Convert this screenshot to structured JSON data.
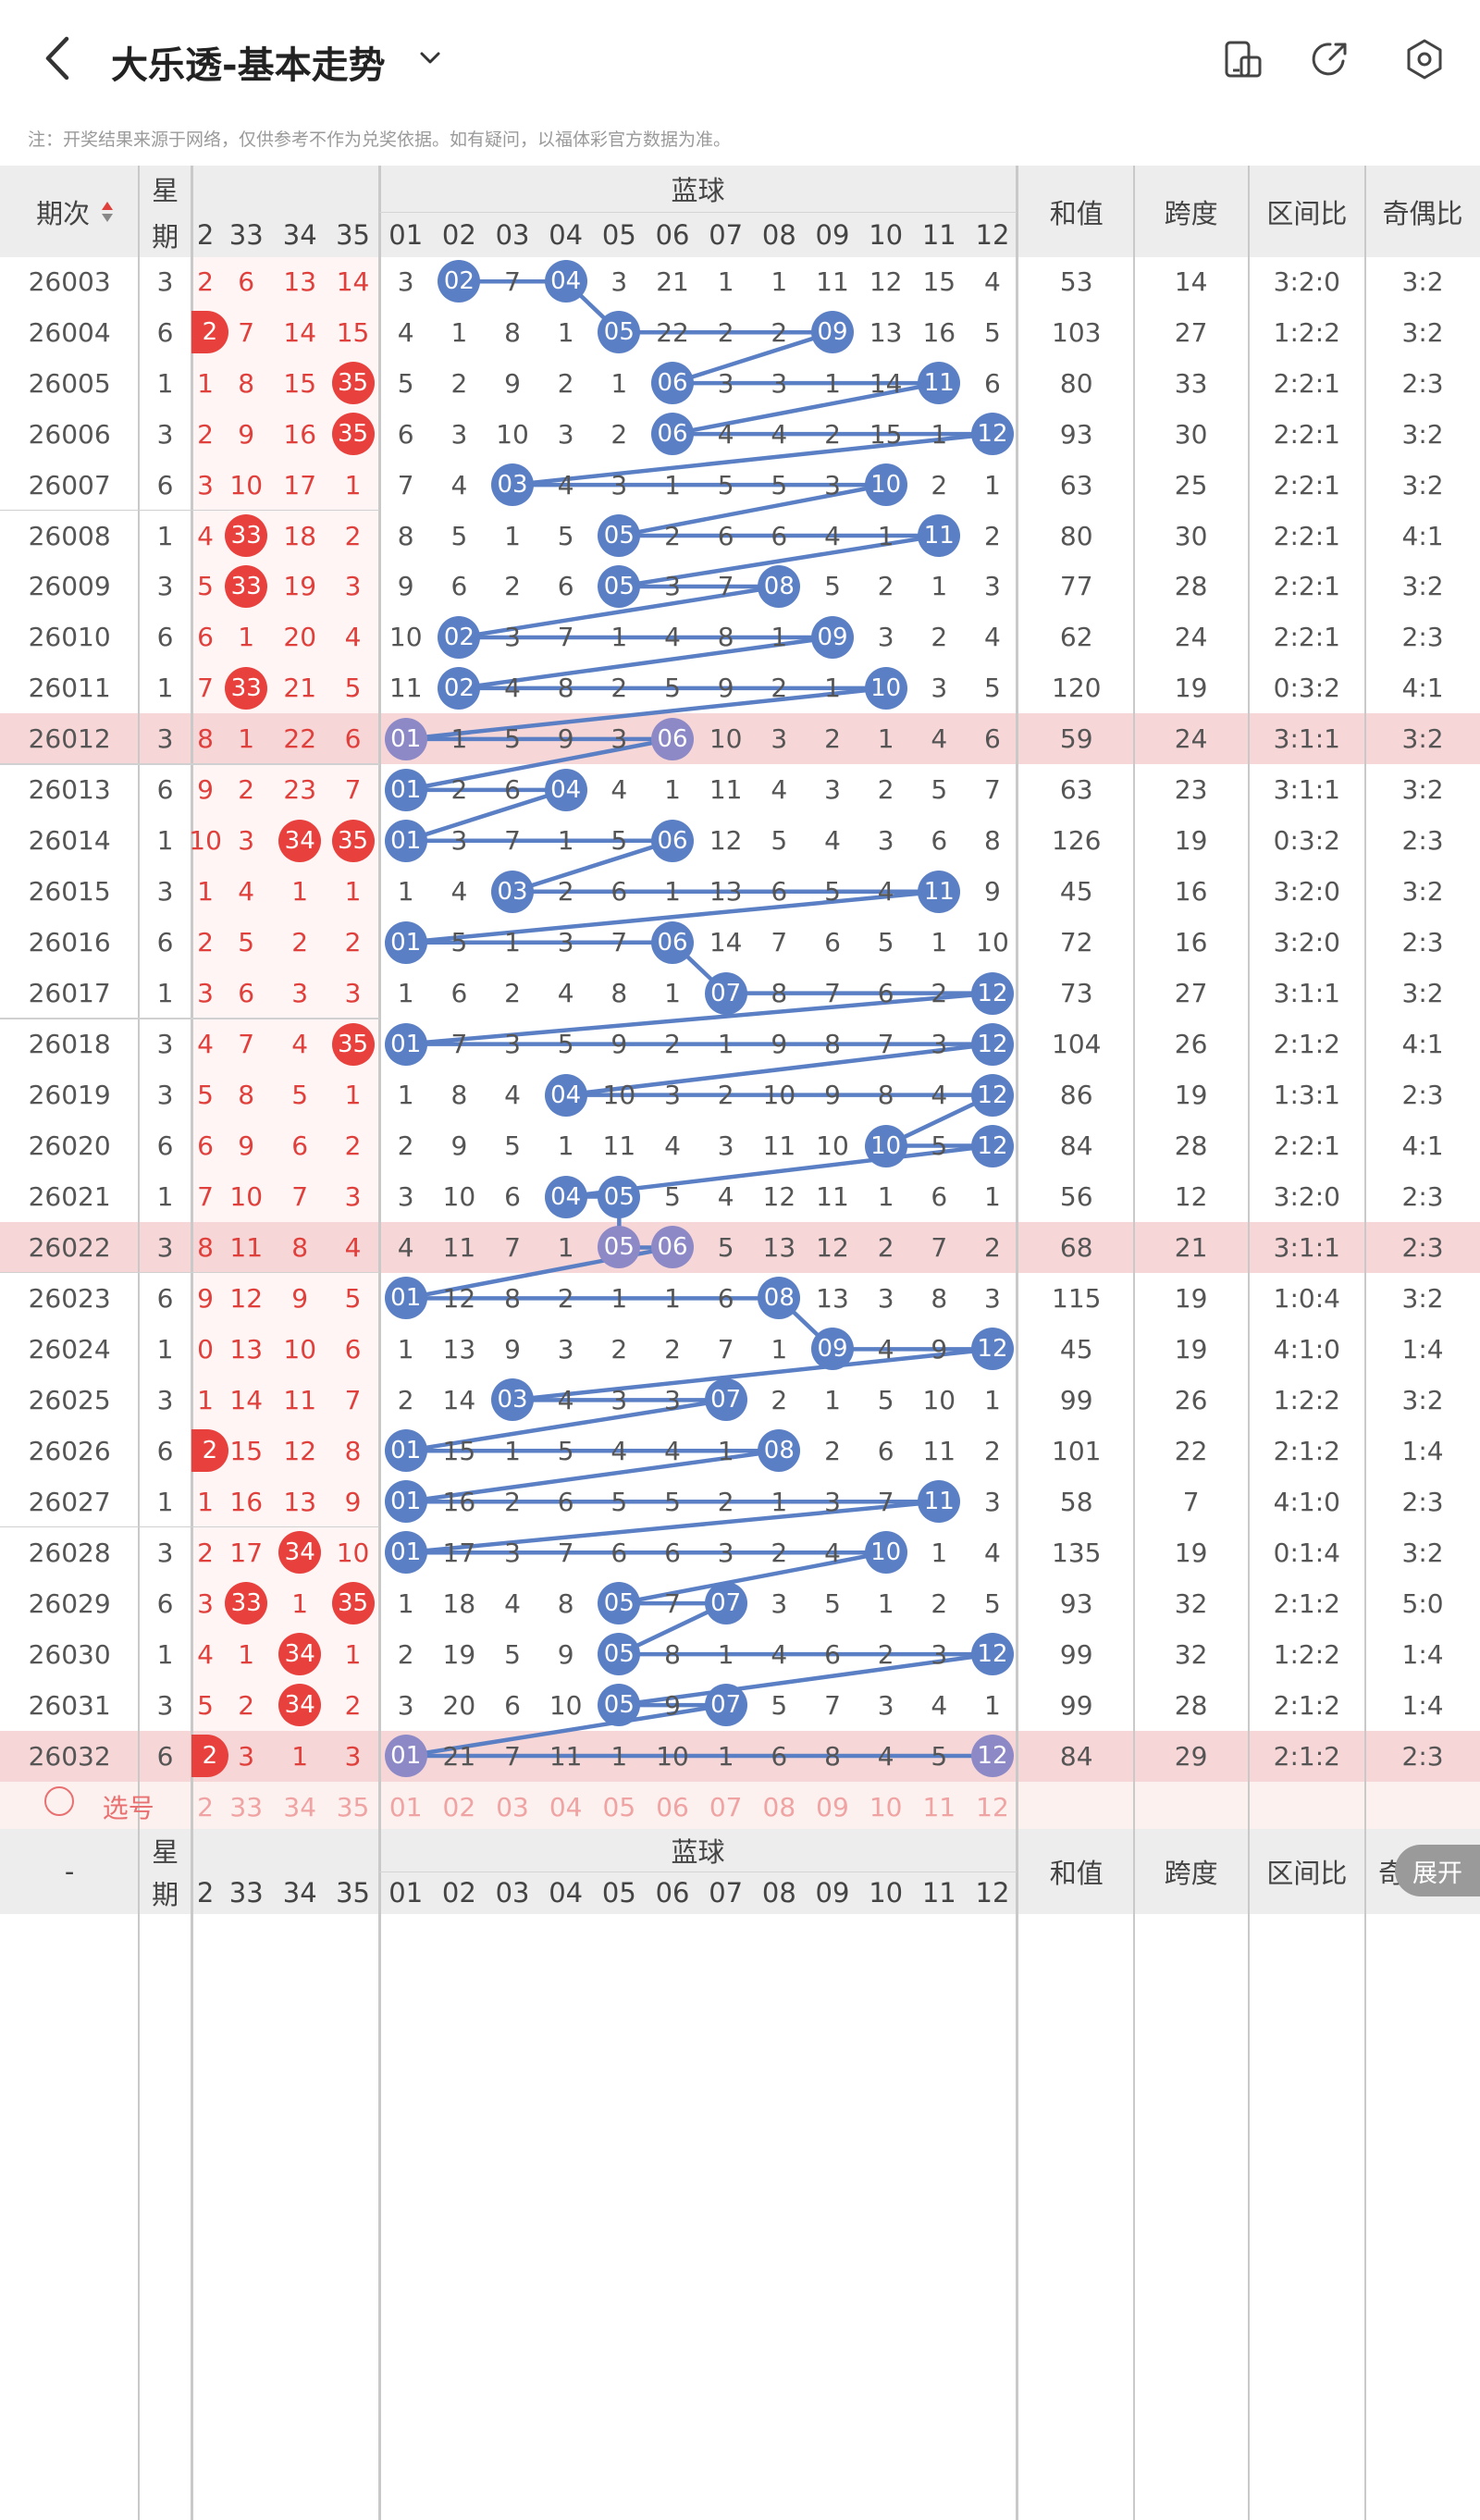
{
  "header": {
    "title": "大乐透-基本走势",
    "back_icon": "back-chevron-icon",
    "dropdown_icon": "chevron-down-icon",
    "right_icons": [
      "layout-toggle-icon",
      "share-icon",
      "settings-icon"
    ]
  },
  "notice": "注：开奖结果来源于网络，仅供参考不作为兑奖依据。如有疑问，以福体彩官方数据为准。",
  "table": {
    "issue_header": "期次",
    "week_header": [
      "星",
      "期"
    ],
    "blue_header": "蓝球",
    "sum_header": "和值",
    "span_header": "跨度",
    "zone_header": "区间比",
    "oddeven_header": "奇偶比",
    "front_cols": [
      "2",
      "33",
      "34",
      "35"
    ],
    "blue_cols": [
      "01",
      "02",
      "03",
      "04",
      "05",
      "06",
      "07",
      "08",
      "09",
      "10",
      "11",
      "12"
    ],
    "rows": [
      {
        "issue": "26003",
        "week": "3",
        "front": [
          "2",
          "6",
          "13",
          "14"
        ],
        "front_hits": [],
        "blue": [
          "3",
          "02",
          "7",
          "04",
          "3",
          "21",
          "1",
          "1",
          "11",
          "12",
          "15",
          "4"
        ],
        "blue_hits": [
          2,
          4
        ],
        "sum": "53",
        "span": "14",
        "zone": "3:2:0",
        "oe": "3:2",
        "hl": false
      },
      {
        "issue": "26004",
        "week": "6",
        "front": [
          "2",
          "7",
          "14",
          "15"
        ],
        "front_hits": [
          1
        ],
        "blue": [
          "4",
          "1",
          "8",
          "1",
          "05",
          "22",
          "2",
          "2",
          "09",
          "13",
          "16",
          "5"
        ],
        "blue_hits": [
          5,
          9
        ],
        "sum": "103",
        "span": "27",
        "zone": "1:2:2",
        "oe": "3:2",
        "hl": false
      },
      {
        "issue": "26005",
        "week": "1",
        "front": [
          "1",
          "8",
          "15",
          "35"
        ],
        "front_hits": [
          4
        ],
        "blue": [
          "5",
          "2",
          "9",
          "2",
          "1",
          "06",
          "3",
          "3",
          "1",
          "14",
          "11",
          "6"
        ],
        "blue_hits": [
          6,
          11
        ],
        "sum": "80",
        "span": "33",
        "zone": "2:2:1",
        "oe": "2:3",
        "hl": false
      },
      {
        "issue": "26006",
        "week": "3",
        "front": [
          "2",
          "9",
          "16",
          "35"
        ],
        "front_hits": [
          4
        ],
        "blue": [
          "6",
          "3",
          "10",
          "3",
          "2",
          "06",
          "4",
          "4",
          "2",
          "15",
          "1",
          "12"
        ],
        "blue_hits": [
          6,
          12
        ],
        "sum": "93",
        "span": "30",
        "zone": "2:2:1",
        "oe": "3:2",
        "hl": false
      },
      {
        "issue": "26007",
        "week": "6",
        "front": [
          "3",
          "10",
          "17",
          "1"
        ],
        "front_hits": [],
        "blue": [
          "7",
          "4",
          "03",
          "4",
          "3",
          "1",
          "5",
          "5",
          "3",
          "10",
          "2",
          "1"
        ],
        "blue_hits": [
          3,
          10
        ],
        "sum": "63",
        "span": "25",
        "zone": "2:2:1",
        "oe": "3:2",
        "hl": false
      },
      {
        "issue": "26008",
        "week": "1",
        "front": [
          "4",
          "33",
          "18",
          "2"
        ],
        "front_hits": [
          2
        ],
        "blue": [
          "8",
          "5",
          "1",
          "5",
          "05",
          "2",
          "6",
          "6",
          "4",
          "1",
          "11",
          "2"
        ],
        "blue_hits": [
          5,
          11
        ],
        "sum": "80",
        "span": "30",
        "zone": "2:2:1",
        "oe": "4:1",
        "hl": false
      },
      {
        "issue": "26009",
        "week": "3",
        "front": [
          "5",
          "33",
          "19",
          "3"
        ],
        "front_hits": [
          2
        ],
        "blue": [
          "9",
          "6",
          "2",
          "6",
          "05",
          "3",
          "7",
          "08",
          "5",
          "2",
          "1",
          "3"
        ],
        "blue_hits": [
          5,
          8
        ],
        "sum": "77",
        "span": "28",
        "zone": "2:2:1",
        "oe": "3:2",
        "hl": false
      },
      {
        "issue": "26010",
        "week": "6",
        "front": [
          "6",
          "1",
          "20",
          "4"
        ],
        "front_hits": [],
        "blue": [
          "10",
          "02",
          "3",
          "7",
          "1",
          "4",
          "8",
          "1",
          "09",
          "3",
          "2",
          "4"
        ],
        "blue_hits": [
          2,
          9
        ],
        "sum": "62",
        "span": "24",
        "zone": "2:2:1",
        "oe": "2:3",
        "hl": false
      },
      {
        "issue": "26011",
        "week": "1",
        "front": [
          "7",
          "33",
          "21",
          "5"
        ],
        "front_hits": [
          2
        ],
        "blue": [
          "11",
          "02",
          "4",
          "8",
          "2",
          "5",
          "9",
          "2",
          "1",
          "10",
          "3",
          "5"
        ],
        "blue_hits": [
          2,
          10
        ],
        "sum": "120",
        "span": "19",
        "zone": "0:3:2",
        "oe": "4:1",
        "hl": false
      },
      {
        "issue": "26012",
        "week": "3",
        "front": [
          "8",
          "1",
          "22",
          "6"
        ],
        "front_hits": [],
        "blue": [
          "01",
          "1",
          "5",
          "9",
          "3",
          "06",
          "10",
          "3",
          "2",
          "1",
          "4",
          "6"
        ],
        "blue_hits": [
          1,
          6
        ],
        "sum": "59",
        "span": "24",
        "zone": "3:1:1",
        "oe": "3:2",
        "hl": true
      },
      {
        "issue": "26013",
        "week": "6",
        "front": [
          "9",
          "2",
          "23",
          "7"
        ],
        "front_hits": [],
        "blue": [
          "01",
          "2",
          "6",
          "04",
          "4",
          "1",
          "11",
          "4",
          "3",
          "2",
          "5",
          "7"
        ],
        "blue_hits": [
          1,
          4
        ],
        "sum": "63",
        "span": "23",
        "zone": "3:1:1",
        "oe": "3:2",
        "hl": false
      },
      {
        "issue": "26014",
        "week": "1",
        "front": [
          "10",
          "3",
          "34",
          "35"
        ],
        "front_hits": [
          3,
          4
        ],
        "blue": [
          "01",
          "3",
          "7",
          "1",
          "5",
          "06",
          "12",
          "5",
          "4",
          "3",
          "6",
          "8"
        ],
        "blue_hits": [
          1,
          6
        ],
        "sum": "126",
        "span": "19",
        "zone": "0:3:2",
        "oe": "2:3",
        "hl": false
      },
      {
        "issue": "26015",
        "week": "3",
        "front": [
          "1",
          "4",
          "1",
          "1"
        ],
        "front_hits": [],
        "blue": [
          "1",
          "4",
          "03",
          "2",
          "6",
          "1",
          "13",
          "6",
          "5",
          "4",
          "11",
          "9"
        ],
        "blue_hits": [
          3,
          11
        ],
        "sum": "45",
        "span": "16",
        "zone": "3:2:0",
        "oe": "3:2",
        "hl": false
      },
      {
        "issue": "26016",
        "week": "6",
        "front": [
          "2",
          "5",
          "2",
          "2"
        ],
        "front_hits": [],
        "blue": [
          "01",
          "5",
          "1",
          "3",
          "7",
          "06",
          "14",
          "7",
          "6",
          "5",
          "1",
          "10"
        ],
        "blue_hits": [
          1,
          6
        ],
        "sum": "72",
        "span": "16",
        "zone": "3:2:0",
        "oe": "2:3",
        "hl": false
      },
      {
        "issue": "26017",
        "week": "1",
        "front": [
          "3",
          "6",
          "3",
          "3"
        ],
        "front_hits": [],
        "blue": [
          "1",
          "6",
          "2",
          "4",
          "8",
          "1",
          "07",
          "8",
          "7",
          "6",
          "2",
          "12"
        ],
        "blue_hits": [
          7,
          12
        ],
        "sum": "73",
        "span": "27",
        "zone": "3:1:1",
        "oe": "3:2",
        "hl": false
      },
      {
        "issue": "26018",
        "week": "3",
        "front": [
          "4",
          "7",
          "4",
          "35"
        ],
        "front_hits": [
          4
        ],
        "blue": [
          "01",
          "7",
          "3",
          "5",
          "9",
          "2",
          "1",
          "9",
          "8",
          "7",
          "3",
          "12"
        ],
        "blue_hits": [
          1,
          12
        ],
        "sum": "104",
        "span": "26",
        "zone": "2:1:2",
        "oe": "4:1",
        "hl": false
      },
      {
        "issue": "26019",
        "week": "3",
        "front": [
          "5",
          "8",
          "5",
          "1"
        ],
        "front_hits": [],
        "blue": [
          "1",
          "8",
          "4",
          "04",
          "10",
          "3",
          "2",
          "10",
          "9",
          "8",
          "4",
          "12"
        ],
        "blue_hits": [
          4,
          12
        ],
        "sum": "86",
        "span": "19",
        "zone": "1:3:1",
        "oe": "2:3",
        "hl": false
      },
      {
        "issue": "26020",
        "week": "6",
        "front": [
          "6",
          "9",
          "6",
          "2"
        ],
        "front_hits": [],
        "blue": [
          "2",
          "9",
          "5",
          "1",
          "11",
          "4",
          "3",
          "11",
          "10",
          "10",
          "5",
          "12"
        ],
        "blue_hits": [
          10,
          12
        ],
        "sum": "84",
        "span": "28",
        "zone": "2:2:1",
        "oe": "4:1",
        "hl": false
      },
      {
        "issue": "26021",
        "week": "1",
        "front": [
          "7",
          "10",
          "7",
          "3"
        ],
        "front_hits": [],
        "blue": [
          "3",
          "10",
          "6",
          "04",
          "05",
          "5",
          "4",
          "12",
          "11",
          "1",
          "6",
          "1"
        ],
        "blue_hits": [
          4,
          5
        ],
        "sum": "56",
        "span": "12",
        "zone": "3:2:0",
        "oe": "2:3",
        "hl": false
      },
      {
        "issue": "26022",
        "week": "3",
        "front": [
          "8",
          "11",
          "8",
          "4"
        ],
        "front_hits": [],
        "blue": [
          "4",
          "11",
          "7",
          "1",
          "05",
          "06",
          "5",
          "13",
          "12",
          "2",
          "7",
          "2"
        ],
        "blue_hits": [
          5,
          6
        ],
        "sum": "68",
        "span": "21",
        "zone": "3:1:1",
        "oe": "2:3",
        "hl": true
      },
      {
        "issue": "26023",
        "week": "6",
        "front": [
          "9",
          "12",
          "9",
          "5"
        ],
        "front_hits": [],
        "blue": [
          "01",
          "12",
          "8",
          "2",
          "1",
          "1",
          "6",
          "08",
          "13",
          "3",
          "8",
          "3"
        ],
        "blue_hits": [
          1,
          8
        ],
        "sum": "115",
        "span": "19",
        "zone": "1:0:4",
        "oe": "3:2",
        "hl": false
      },
      {
        "issue": "26024",
        "week": "1",
        "front": [
          "0",
          "13",
          "10",
          "6"
        ],
        "front_hits": [],
        "blue": [
          "1",
          "13",
          "9",
          "3",
          "2",
          "2",
          "7",
          "1",
          "09",
          "4",
          "9",
          "12"
        ],
        "blue_hits": [
          9,
          12
        ],
        "sum": "45",
        "span": "19",
        "zone": "4:1:0",
        "oe": "1:4",
        "hl": false
      },
      {
        "issue": "26025",
        "week": "3",
        "front": [
          "1",
          "14",
          "11",
          "7"
        ],
        "front_hits": [],
        "blue": [
          "2",
          "14",
          "03",
          "4",
          "3",
          "3",
          "07",
          "2",
          "1",
          "5",
          "10",
          "1"
        ],
        "blue_hits": [
          3,
          7
        ],
        "sum": "99",
        "span": "26",
        "zone": "1:2:2",
        "oe": "3:2",
        "hl": false
      },
      {
        "issue": "26026",
        "week": "6",
        "front": [
          "2",
          "15",
          "12",
          "8"
        ],
        "front_hits": [
          1
        ],
        "blue": [
          "01",
          "15",
          "1",
          "5",
          "4",
          "4",
          "1",
          "08",
          "2",
          "6",
          "11",
          "2"
        ],
        "blue_hits": [
          1,
          8
        ],
        "sum": "101",
        "span": "22",
        "zone": "2:1:2",
        "oe": "1:4",
        "hl": false
      },
      {
        "issue": "26027",
        "week": "1",
        "front": [
          "1",
          "16",
          "13",
          "9"
        ],
        "front_hits": [],
        "blue": [
          "01",
          "16",
          "2",
          "6",
          "5",
          "5",
          "2",
          "1",
          "3",
          "7",
          "11",
          "3"
        ],
        "blue_hits": [
          1,
          11
        ],
        "sum": "58",
        "span": "7",
        "zone": "4:1:0",
        "oe": "2:3",
        "hl": false
      },
      {
        "issue": "26028",
        "week": "3",
        "front": [
          "2",
          "17",
          "34",
          "10"
        ],
        "front_hits": [
          3
        ],
        "blue": [
          "01",
          "17",
          "3",
          "7",
          "6",
          "6",
          "3",
          "2",
          "4",
          "10",
          "1",
          "4"
        ],
        "blue_hits": [
          1,
          10
        ],
        "sum": "135",
        "span": "19",
        "zone": "0:1:4",
        "oe": "3:2",
        "hl": false
      },
      {
        "issue": "26029",
        "week": "6",
        "front": [
          "3",
          "33",
          "1",
          "35"
        ],
        "front_hits": [
          2,
          4
        ],
        "blue": [
          "1",
          "18",
          "4",
          "8",
          "05",
          "7",
          "07",
          "3",
          "5",
          "1",
          "2",
          "5"
        ],
        "blue_hits": [
          5,
          7
        ],
        "sum": "93",
        "span": "32",
        "zone": "2:1:2",
        "oe": "5:0",
        "hl": false
      },
      {
        "issue": "26030",
        "week": "1",
        "front": [
          "4",
          "1",
          "34",
          "1"
        ],
        "front_hits": [
          3
        ],
        "blue": [
          "2",
          "19",
          "5",
          "9",
          "05",
          "8",
          "1",
          "4",
          "6",
          "2",
          "3",
          "12"
        ],
        "blue_hits": [
          5,
          12
        ],
        "sum": "99",
        "span": "32",
        "zone": "1:2:2",
        "oe": "1:4",
        "hl": false
      },
      {
        "issue": "26031",
        "week": "3",
        "front": [
          "5",
          "2",
          "34",
          "2"
        ],
        "front_hits": [
          3
        ],
        "blue": [
          "3",
          "20",
          "6",
          "10",
          "05",
          "9",
          "07",
          "5",
          "7",
          "3",
          "4",
          "1"
        ],
        "blue_hits": [
          5,
          7
        ],
        "sum": "99",
        "span": "28",
        "zone": "2:1:2",
        "oe": "1:4",
        "hl": false
      },
      {
        "issue": "26032",
        "week": "6",
        "front": [
          "2",
          "3",
          "1",
          "3"
        ],
        "front_hits": [
          1
        ],
        "blue": [
          "01",
          "21",
          "7",
          "11",
          "1",
          "10",
          "1",
          "6",
          "8",
          "4",
          "5",
          "12"
        ],
        "blue_hits": [
          1,
          12
        ],
        "sum": "84",
        "span": "29",
        "zone": "2:1:2",
        "oe": "2:3",
        "hl": true
      }
    ],
    "select_label": "选号",
    "footer_dash": "-",
    "expand_label": "展开",
    "footer_oe_partial": "奇"
  }
}
